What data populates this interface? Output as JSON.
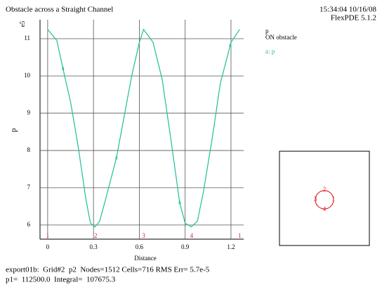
{
  "chart_data": {
    "type": "line",
    "title": "Obstacle across a Straight Channel",
    "timestamp": "15:34:04 10/16/08",
    "software": "FlexPDE 5.1.2",
    "legend_title": "p",
    "legend_subtitle": "ON obstacle",
    "x_label": "Distance",
    "y_label": "p",
    "y_multiplier": "e5",
    "x": [
      0,
      0.06,
      0.1,
      0.15,
      0.2,
      0.25,
      0.28,
      0.31,
      0.34,
      0.38,
      0.45,
      0.5,
      0.55,
      0.6,
      0.628,
      0.69,
      0.75,
      0.81,
      0.864,
      0.9,
      0.94,
      0.98,
      1.02,
      1.08,
      1.13,
      1.2,
      1.257
    ],
    "series": [
      {
        "name": "a: p",
        "color": "#1fbf98",
        "marker": "a",
        "marker_x": [
          0.1,
          0.45,
          0.864,
          1.195
        ],
        "values": [
          11.25,
          10.95,
          10.2,
          9.3,
          8.1,
          6.7,
          6.05,
          5.95,
          6.1,
          6.7,
          7.8,
          8.9,
          10.0,
          10.9,
          11.25,
          10.9,
          9.9,
          8.2,
          6.6,
          6.05,
          5.95,
          6.1,
          6.9,
          8.4,
          9.8,
          10.9,
          11.25
        ]
      }
    ],
    "boundary_points": {
      "x": [
        0,
        0.314,
        0.628,
        0.942,
        1.257
      ],
      "labels": [
        "1",
        "2",
        "3",
        "4",
        "1"
      ],
      "color": "#e02020"
    },
    "inset_labels": [
      "2",
      "3",
      "1",
      "4"
    ],
    "xlim": [
      -0.05,
      1.283
    ],
    "ylim": [
      5.62,
      11.51
    ],
    "xticks": [
      0,
      0.3,
      0.6,
      0.9,
      1.2
    ],
    "yticks": [
      6,
      7,
      8,
      9,
      10,
      11
    ],
    "grid": true,
    "footer": [
      "export01b:  Grid#2  p2  Nodes=1512 Cells=716 RMS Err= 5.7e-5",
      "p1=  112500.0  Integral=  107675.3"
    ]
  }
}
